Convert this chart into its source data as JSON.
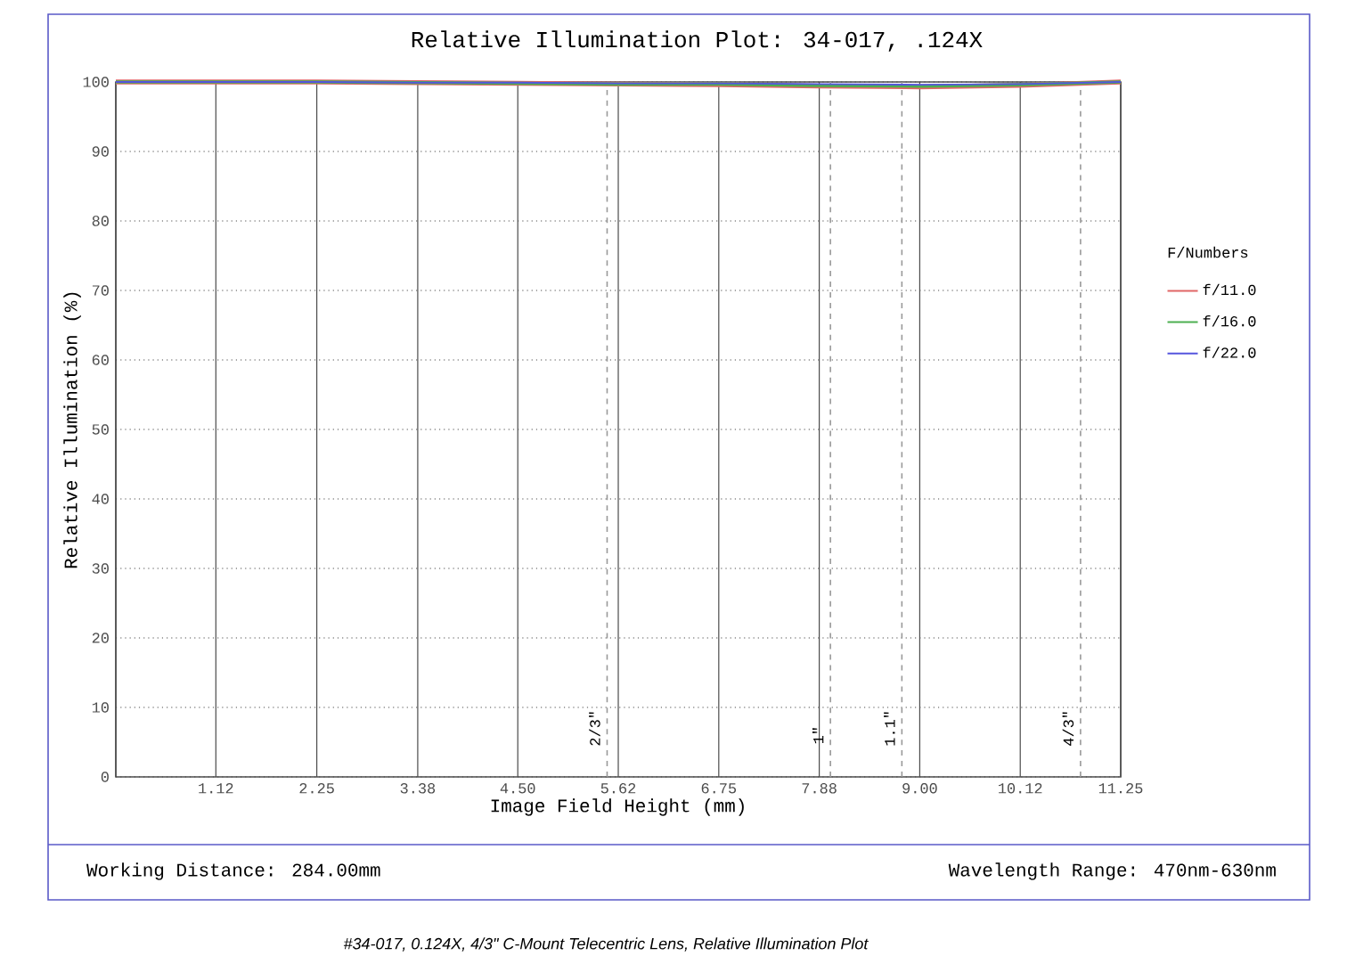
{
  "chart_data": {
    "type": "line",
    "title": "Relative Illumination Plot: 34-017, .124X",
    "xlabel": "Image Field Height (mm)",
    "ylabel": "Relative Illumination (%)",
    "legend_title": "F/Numbers",
    "legend": "right",
    "grid": true,
    "marker": "none",
    "line_style": "solid",
    "xlim": [
      0,
      11.25
    ],
    "ylim": [
      0,
      100
    ],
    "xticks": [
      {
        "value": 0,
        "label": null
      },
      1.12,
      2.25,
      3.38,
      {
        "value": 4.5,
        "label": "4.50"
      },
      {
        "value": 5.625,
        "label": "5.62"
      },
      6.75,
      {
        "value": 7.875,
        "label": "7.88"
      },
      {
        "value": 9,
        "label": "9.00"
      },
      {
        "value": 10.125,
        "label": "10.12"
      },
      11.25
    ],
    "yticks": [
      0,
      10,
      20,
      30,
      40,
      50,
      60,
      70,
      80,
      90,
      100
    ],
    "x": [
      0,
      1.125,
      2.25,
      3.375,
      4.5,
      5.625,
      6.75,
      7.875,
      9,
      10.125,
      11.25
    ],
    "series": [
      {
        "name": "f/11.0",
        "color": "#e06666",
        "values": [
          100,
          100,
          100,
          99.9,
          99.8,
          99.7,
          99.6,
          99.4,
          99.3,
          99.5,
          100
        ]
      },
      {
        "name": "f/16.0",
        "color": "#4caf50",
        "values": [
          100,
          100,
          100,
          99.9,
          99.8,
          99.7,
          99.7,
          99.5,
          99.4,
          99.6,
          100
        ]
      },
      {
        "name": "f/22.0",
        "color": "#5555dd",
        "values": [
          100,
          100,
          100,
          99.9,
          99.9,
          99.8,
          99.8,
          99.7,
          99.6,
          99.7,
          100
        ]
      }
    ],
    "ref_lines": [
      {
        "axis": "x",
        "value": 5.5,
        "color": "#999999",
        "line_style": "dashed"
      },
      {
        "axis": "x",
        "value": 8.0,
        "color": "#999999",
        "line_style": "dashed"
      },
      {
        "axis": "x",
        "value": 8.8,
        "color": "#999999",
        "line_style": "dashed"
      },
      {
        "axis": "x",
        "value": 10.8,
        "color": "#999999",
        "line_style": "dashed"
      }
    ],
    "annotations": [
      "Working Distance: 284.00mm",
      "Wavelength Range: 470nm-630nm",
      "#34-017, 0.124X, 4/3\" C-Mount Telecentric Lens, Relative Illumination Plot",
      {
        "text": "2/3\"",
        "x": 5.5,
        "y": 7
      },
      {
        "text": "1\"",
        "x": 8.0,
        "y": 6
      },
      {
        "text": "1.1\"",
        "x": 8.8,
        "y": 7
      },
      {
        "text": "4/3\"",
        "x": 10.8,
        "y": 7
      }
    ]
  }
}
